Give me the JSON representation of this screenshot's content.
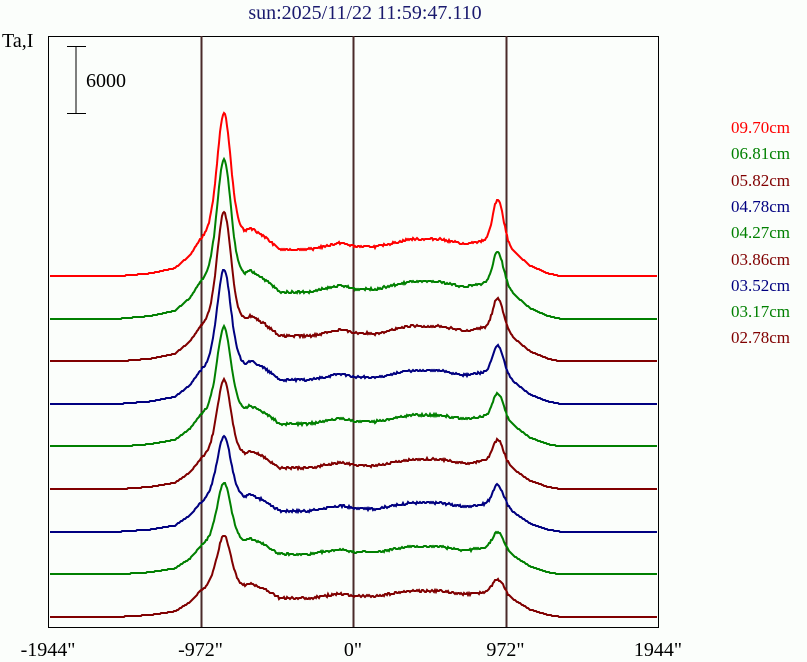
{
  "title": "sun:2025/11/22 11:59:47.110",
  "chart_data": {
    "type": "line",
    "title": "sun:2025/11/22 11:59:47.110",
    "ylabel": "Ta,I",
    "xlabel": "",
    "scale_bar_label": "6000",
    "x_ticks": [
      {
        "value": -1944,
        "label": "-1944\""
      },
      {
        "value": -972,
        "label": "-972\""
      },
      {
        "value": 0,
        "label": "0\""
      },
      {
        "value": 972,
        "label": "972\""
      },
      {
        "value": 1944,
        "label": "1944\""
      }
    ],
    "xlim": [
      -1944,
      1944
    ],
    "vertical_lines": [
      -972,
      0,
      972
    ],
    "series": [
      {
        "name": "09.70cm",
        "color": "#ff0000",
        "disk": 1.0,
        "limb_east": 111,
        "limb_west": 40
      },
      {
        "name": "06.81cm",
        "color": "#008000",
        "disk": 1.0,
        "limb_east": 108,
        "limb_west": 30
      },
      {
        "name": "05.82cm",
        "color": "#800000",
        "disk": 0.95,
        "limb_east": 100,
        "limb_west": 28
      },
      {
        "name": "04.78cm",
        "color": "#000080",
        "disk": 0.9,
        "limb_east": 88,
        "limb_west": 25
      },
      {
        "name": "04.27cm",
        "color": "#008000",
        "disk": 0.85,
        "limb_east": 75,
        "limb_west": 22
      },
      {
        "name": "03.86cm",
        "color": "#800000",
        "disk": 0.8,
        "limb_east": 68,
        "limb_west": 20
      },
      {
        "name": "03.52cm",
        "color": "#000080",
        "disk": 0.78,
        "limb_east": 55,
        "limb_west": 18
      },
      {
        "name": "03.17cm",
        "color": "#008000",
        "disk": 0.75,
        "limb_east": 52,
        "limb_west": 15
      },
      {
        "name": "02.78cm",
        "color": "#800000",
        "disk": 0.7,
        "limb_east": 45,
        "limb_west": 12
      }
    ]
  }
}
